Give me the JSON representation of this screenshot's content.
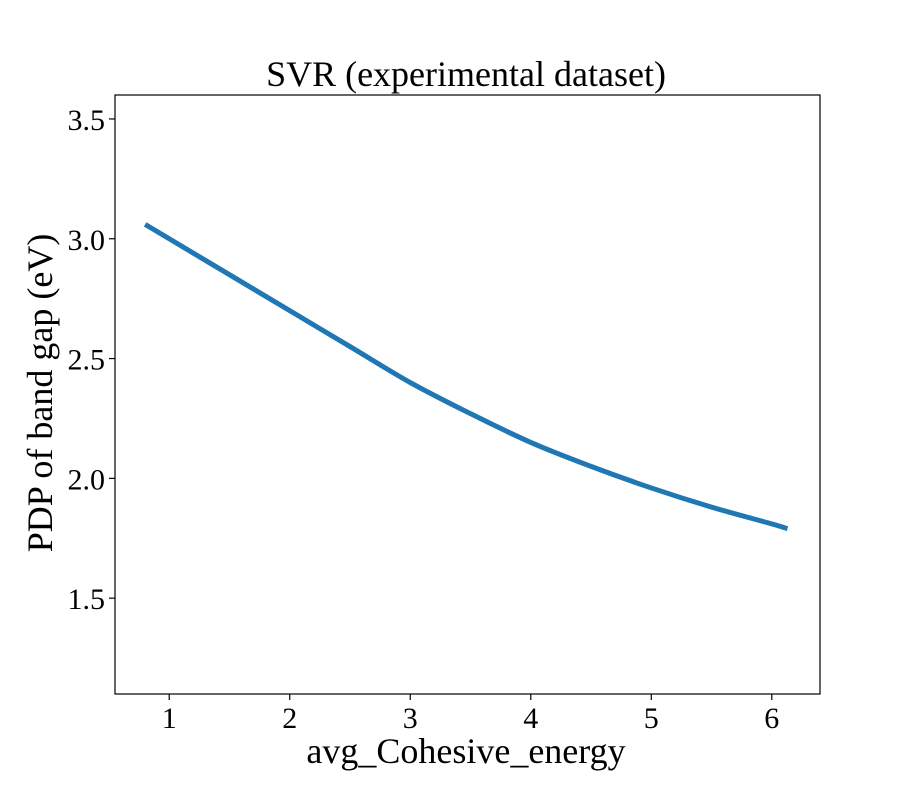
{
  "colors": {
    "line": "#1f77b4",
    "axes": "#000000",
    "background": "#ffffff"
  },
  "chart_data": {
    "type": "line",
    "title": "SVR (experimental dataset)",
    "xlabel": "avg_Cohesive_energy",
    "ylabel": "PDP of band gap (eV)",
    "xlim": [
      0.55,
      6.4
    ],
    "ylim": [
      1.1,
      3.6
    ],
    "x_ticks": [
      1,
      2,
      3,
      4,
      5,
      6
    ],
    "x_tick_labels": [
      "1",
      "2",
      "3",
      "4",
      "5",
      "6"
    ],
    "y_ticks": [
      1.5,
      2.0,
      2.5,
      3.0,
      3.5
    ],
    "y_tick_labels": [
      "1.5",
      "2.0",
      "2.5",
      "3.0",
      "3.5"
    ],
    "grid": false,
    "legend": "none",
    "series": [
      {
        "color": "#1f77b4",
        "x": [
          0.8,
          1.0,
          1.5,
          2.0,
          2.5,
          3.0,
          3.5,
          4.0,
          4.5,
          5.0,
          5.5,
          6.0,
          6.13
        ],
        "y": [
          3.06,
          3.0,
          2.85,
          2.7,
          2.55,
          2.4,
          2.27,
          2.15,
          2.05,
          1.96,
          1.88,
          1.81,
          1.79
        ]
      }
    ]
  }
}
